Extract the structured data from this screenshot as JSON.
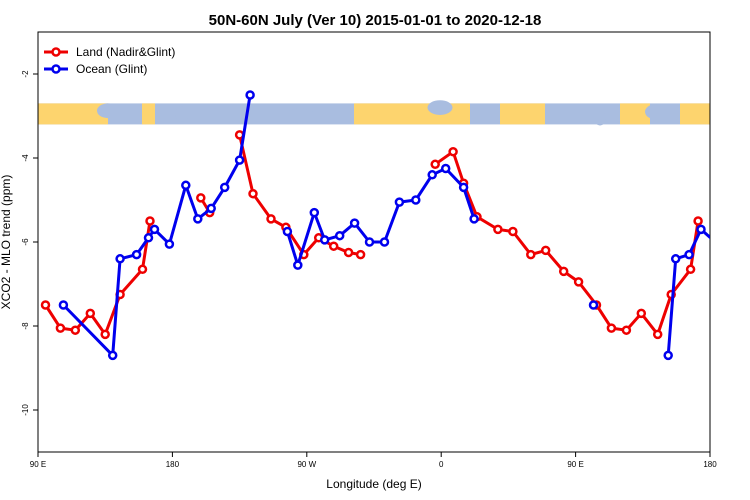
{
  "chart_data": {
    "type": "line",
    "title": "50N-60N July (Ver 10)   2015-01-01 to 2020-12-18",
    "xlabel": "Longitude (deg E)",
    "ylabel": "XCO2 - MLO trend (ppm)",
    "xlim": [
      90,
      540
    ],
    "ylim": [
      -11,
      -1
    ],
    "x_ticks": [
      {
        "value": 90,
        "label": "90 E"
      },
      {
        "value": 180,
        "label": "180"
      },
      {
        "value": 270,
        "label": "90 W"
      },
      {
        "value": 360,
        "label": "0"
      },
      {
        "value": 450,
        "label": "90 E"
      },
      {
        "value": 540,
        "label": "180"
      }
    ],
    "y_ticks": [
      {
        "value": -2,
        "label": "-2"
      },
      {
        "value": -4,
        "label": "-4"
      },
      {
        "value": -6,
        "label": "-6"
      },
      {
        "value": -8,
        "label": "-8"
      },
      {
        "value": -10,
        "label": "-10"
      }
    ],
    "legend_position": "top-left",
    "map_strip": {
      "y_top": -2.7,
      "y_bottom": -3.2,
      "ocean_color": "#a9bde0",
      "land_color": "#fdd46e"
    },
    "series": [
      {
        "name": "Land (Nadir&Glint)",
        "color": "#ee0000",
        "segments": [
          [
            [
              95,
              -7.5
            ],
            [
              105,
              -8.05
            ],
            [
              115,
              -8.1
            ],
            [
              125,
              -7.7
            ],
            [
              135,
              -8.2
            ],
            [
              145,
              -7.25
            ],
            [
              160,
              -6.65
            ],
            [
              165,
              -5.5
            ]
          ],
          [
            [
              199,
              -4.95
            ],
            [
              205,
              -5.3
            ]
          ],
          [
            [
              225,
              -3.45
            ],
            [
              234,
              -4.85
            ],
            [
              246,
              -5.45
            ],
            [
              256,
              -5.65
            ],
            [
              268,
              -6.3
            ],
            [
              278,
              -5.9
            ],
            [
              288,
              -6.1
            ],
            [
              298,
              -6.25
            ],
            [
              306,
              -6.3
            ]
          ],
          [
            [
              356,
              -4.15
            ],
            [
              368,
              -3.85
            ],
            [
              375,
              -4.6
            ],
            [
              384,
              -5.4
            ],
            [
              398,
              -5.7
            ],
            [
              408,
              -5.75
            ],
            [
              420,
              -6.3
            ],
            [
              430,
              -6.2
            ],
            [
              442,
              -6.7
            ],
            [
              452,
              -6.95
            ],
            [
              464,
              -7.5
            ],
            [
              474,
              -8.05
            ],
            [
              484,
              -8.1
            ],
            [
              494,
              -7.7
            ],
            [
              505,
              -8.2
            ],
            [
              514,
              -7.25
            ],
            [
              527,
              -6.65
            ],
            [
              532,
              -5.5
            ]
          ]
        ]
      },
      {
        "name": "Ocean (Glint)",
        "color": "#0000ee",
        "segments": [
          [
            [
              107,
              -7.5
            ],
            [
              140,
              -8.7
            ],
            [
              145,
              -6.4
            ],
            [
              156,
              -6.3
            ],
            [
              164,
              -5.9
            ],
            [
              168,
              -5.7
            ],
            [
              178,
              -6.05
            ],
            [
              189,
              -4.65
            ],
            [
              197,
              -5.45
            ],
            [
              206,
              -5.2
            ],
            [
              215,
              -4.7
            ],
            [
              225,
              -4.05
            ],
            [
              232,
              -2.5
            ]
          ],
          [
            [
              257,
              -5.75
            ],
            [
              264,
              -6.55
            ],
            [
              275,
              -5.3
            ],
            [
              282,
              -5.95
            ],
            [
              292,
              -5.85
            ],
            [
              302,
              -5.55
            ],
            [
              312,
              -6.0
            ],
            [
              322,
              -6.0
            ],
            [
              332,
              -5.05
            ],
            [
              343,
              -5.0
            ],
            [
              354,
              -4.4
            ],
            [
              363,
              -4.25
            ],
            [
              375,
              -4.7
            ],
            [
              382,
              -5.45
            ]
          ],
          [
            [
              462,
              -7.5
            ]
          ],
          [
            [
              512,
              -8.7
            ],
            [
              517,
              -6.4
            ],
            [
              526,
              -6.3
            ],
            [
              534,
              -5.7
            ],
            [
              545,
              -6.05
            ]
          ]
        ]
      }
    ]
  }
}
